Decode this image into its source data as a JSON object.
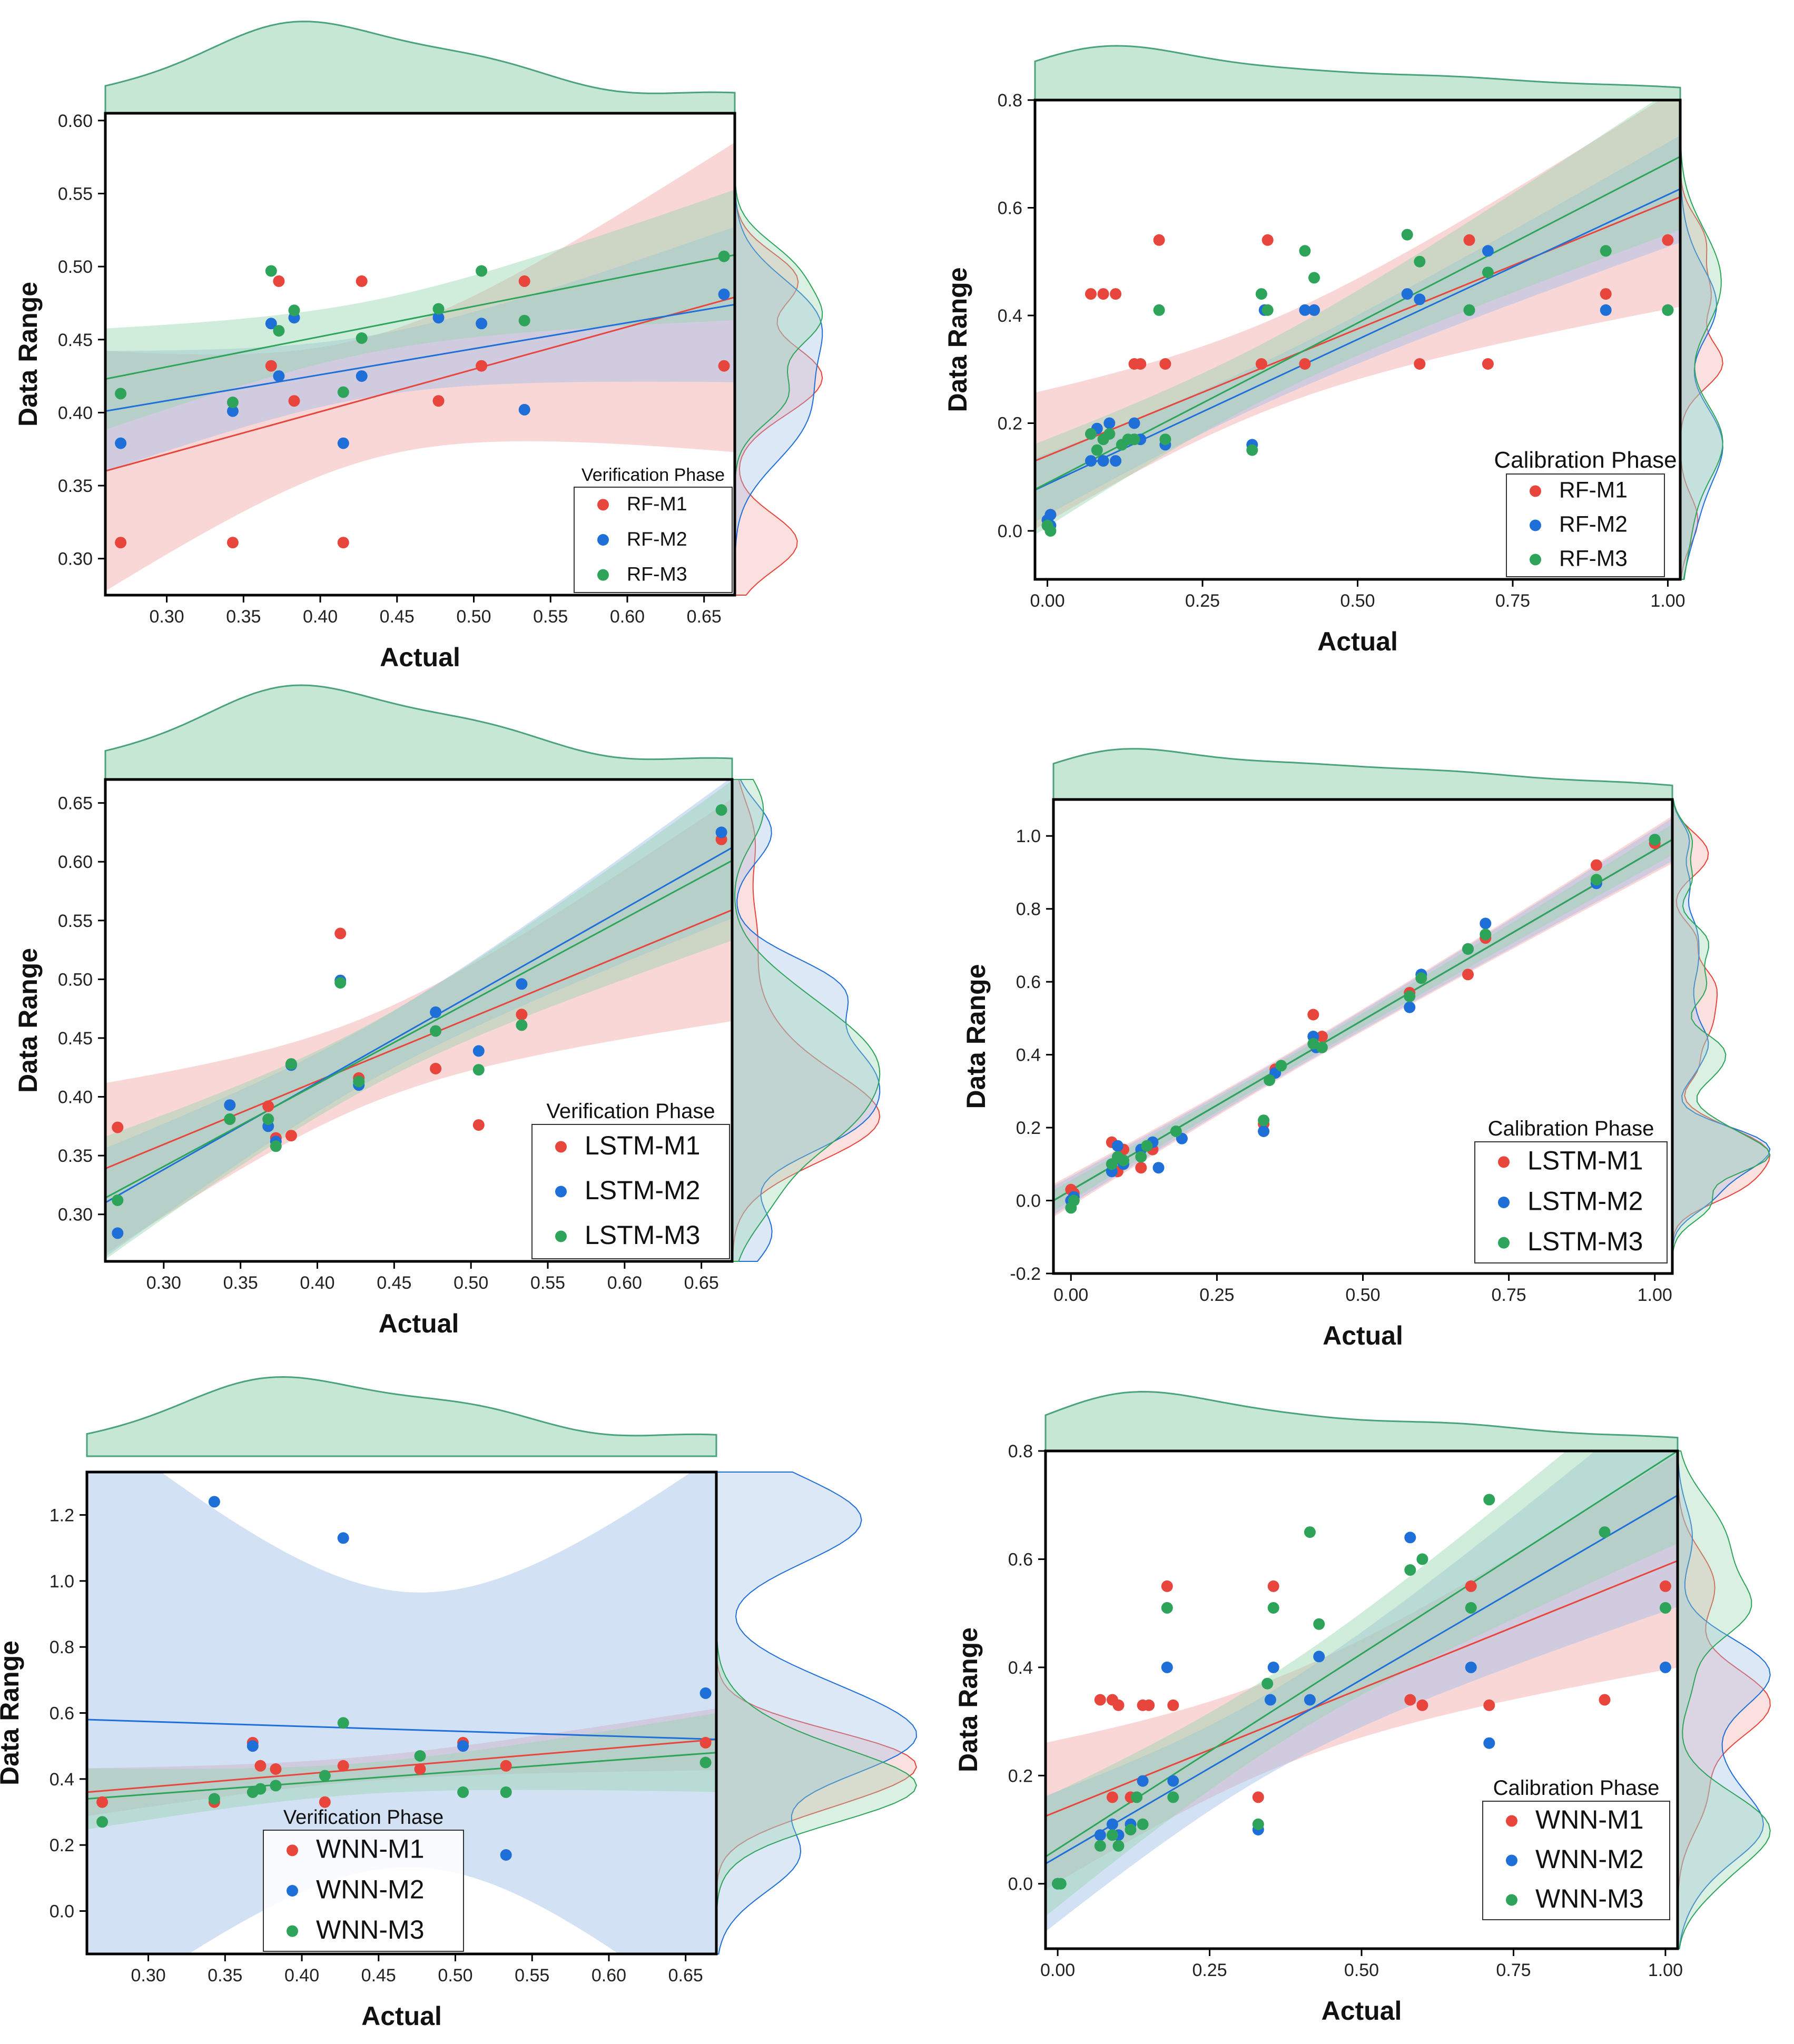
{
  "colors": {
    "M1": "#e8453c",
    "M2": "#1f6fd8",
    "M3": "#2ea45a",
    "band_M1": "#f4a6a6",
    "band_M2": "#9dbde8",
    "band_M3": "#96d4b0",
    "kde": "#4aa37c"
  },
  "chart_data": [
    {
      "type": "scatter",
      "xlabel": "Actual",
      "ylabel": "Data Range",
      "xlim": [
        0.26,
        0.67
      ],
      "ylim": [
        0.275,
        0.605
      ],
      "xticks": [
        "0.30",
        "0.35",
        "0.40",
        "0.45",
        "0.50",
        "0.55",
        "0.60",
        "0.65"
      ],
      "yticks": [
        "0.30",
        "0.35",
        "0.40",
        "0.45",
        "0.50",
        "0.55",
        "0.60"
      ],
      "legend_title": "Verification Phase",
      "legend_position": "bottom-right",
      "series": [
        {
          "name": "RF-M1",
          "x": [
            0.27,
            0.343,
            0.368,
            0.373,
            0.383,
            0.415,
            0.427,
            0.477,
            0.505,
            0.533,
            0.663
          ],
          "y": [
            0.311,
            0.311,
            0.432,
            0.49,
            0.408,
            0.311,
            0.49,
            0.408,
            0.432,
            0.49,
            0.432
          ],
          "fit": [
            0.36,
            0.479
          ]
        },
        {
          "name": "RF-M2",
          "x": [
            0.27,
            0.343,
            0.368,
            0.373,
            0.383,
            0.415,
            0.427,
            0.477,
            0.505,
            0.533,
            0.663
          ],
          "y": [
            0.379,
            0.401,
            0.461,
            0.425,
            0.465,
            0.379,
            0.425,
            0.465,
            0.461,
            0.402,
            0.481
          ],
          "fit": [
            0.401,
            0.474
          ]
        },
        {
          "name": "RF-M3",
          "x": [
            0.27,
            0.343,
            0.368,
            0.373,
            0.383,
            0.415,
            0.427,
            0.477,
            0.505,
            0.533,
            0.663
          ],
          "y": [
            0.413,
            0.407,
            0.497,
            0.456,
            0.47,
            0.414,
            0.451,
            0.471,
            0.497,
            0.463,
            0.507
          ],
          "fit": [
            0.423,
            0.508
          ]
        }
      ]
    },
    {
      "type": "scatter",
      "xlabel": "Actual",
      "ylabel": "Data Range",
      "xlim": [
        -0.02,
        1.02
      ],
      "ylim": [
        -0.09,
        0.8
      ],
      "xticks": [
        "0.00",
        "0.25",
        "0.50",
        "0.75",
        "1.00"
      ],
      "yticks": [
        "0.0",
        "0.2",
        "0.4",
        "0.6",
        "0.8"
      ],
      "legend_title": "Calibration Phase",
      "legend_position": "bottom-right",
      "series": [
        {
          "name": "RF-M1",
          "x": [
            0.0,
            0.0,
            0.005,
            0.07,
            0.09,
            0.11,
            0.14,
            0.15,
            0.18,
            0.19,
            0.345,
            0.355,
            0.415,
            0.43,
            0.6,
            0.68,
            0.71,
            0.9,
            1.0
          ],
          "y": [
            0.01,
            0.02,
            0.03,
            0.44,
            0.44,
            0.44,
            0.31,
            0.31,
            0.54,
            0.31,
            0.31,
            0.54,
            0.31,
            0.41,
            0.31,
            0.54,
            0.31,
            0.44,
            0.54
          ],
          "fit": [
            0.13,
            0.62
          ]
        },
        {
          "name": "RF-M2",
          "x": [
            0.0,
            0.005,
            0.005,
            0.07,
            0.08,
            0.09,
            0.1,
            0.11,
            0.12,
            0.14,
            0.15,
            0.19,
            0.33,
            0.35,
            0.415,
            0.43,
            0.58,
            0.6,
            0.68,
            0.71,
            0.9,
            1.0
          ],
          "y": [
            0.02,
            0.03,
            0.01,
            0.13,
            0.19,
            0.13,
            0.2,
            0.13,
            0.16,
            0.2,
            0.17,
            0.16,
            0.16,
            0.41,
            0.41,
            0.41,
            0.44,
            0.43,
            0.41,
            0.52,
            0.41,
            0.41
          ],
          "fit": [
            0.076,
            0.635
          ]
        },
        {
          "name": "RF-M3",
          "x": [
            0.0,
            0.005,
            0.07,
            0.08,
            0.09,
            0.1,
            0.12,
            0.13,
            0.14,
            0.18,
            0.19,
            0.33,
            0.345,
            0.355,
            0.415,
            0.43,
            0.58,
            0.6,
            0.68,
            0.71,
            0.9,
            1.0
          ],
          "y": [
            0.01,
            0.0,
            0.18,
            0.15,
            0.17,
            0.18,
            0.16,
            0.17,
            0.17,
            0.41,
            0.17,
            0.15,
            0.44,
            0.41,
            0.52,
            0.47,
            0.55,
            0.5,
            0.41,
            0.48,
            0.52,
            0.41
          ],
          "fit": [
            0.077,
            0.695
          ]
        }
      ]
    },
    {
      "type": "scatter",
      "xlabel": "Actual",
      "ylabel": "Data Range",
      "xlim": [
        0.262,
        0.67
      ],
      "ylim": [
        0.26,
        0.67
      ],
      "xticks": [
        "0.30",
        "0.35",
        "0.40",
        "0.45",
        "0.50",
        "0.55",
        "0.60",
        "0.65"
      ],
      "yticks": [
        "0.30",
        "0.35",
        "0.40",
        "0.45",
        "0.50",
        "0.55",
        "0.60",
        "0.65"
      ],
      "legend_title": "Verification Phase",
      "legend_position": "bottom-right",
      "series": [
        {
          "name": "LSTM-M1",
          "x": [
            0.27,
            0.343,
            0.368,
            0.373,
            0.383,
            0.415,
            0.427,
            0.477,
            0.505,
            0.533,
            0.663
          ],
          "y": [
            0.374,
            0.381,
            0.392,
            0.365,
            0.367,
            0.539,
            0.416,
            0.424,
            0.376,
            0.47,
            0.619
          ],
          "fit": [
            0.339,
            0.559
          ]
        },
        {
          "name": "LSTM-M2",
          "x": [
            0.27,
            0.343,
            0.368,
            0.373,
            0.383,
            0.415,
            0.427,
            0.477,
            0.505,
            0.533,
            0.663
          ],
          "y": [
            0.284,
            0.393,
            0.375,
            0.362,
            0.427,
            0.499,
            0.41,
            0.472,
            0.439,
            0.496,
            0.625
          ],
          "fit": [
            0.31,
            0.612
          ]
        },
        {
          "name": "LSTM-M3",
          "x": [
            0.27,
            0.343,
            0.368,
            0.373,
            0.383,
            0.415,
            0.427,
            0.477,
            0.505,
            0.533,
            0.663
          ],
          "y": [
            0.312,
            0.381,
            0.381,
            0.358,
            0.428,
            0.497,
            0.413,
            0.456,
            0.423,
            0.461,
            0.644
          ],
          "fit": [
            0.314,
            0.601
          ]
        }
      ]
    },
    {
      "type": "scatter",
      "xlabel": "Actual",
      "ylabel": "Data Range",
      "xlim": [
        -0.03,
        1.03
      ],
      "ylim": [
        -0.2,
        1.1
      ],
      "xticks": [
        "0.00",
        "0.25",
        "0.50",
        "0.75",
        "1.00"
      ],
      "yticks": [
        "-0.2",
        "0.0",
        "0.2",
        "0.4",
        "0.6",
        "0.8",
        "1.0"
      ],
      "legend_title": "Calibration Phase",
      "legend_position": "bottom-right",
      "series": [
        {
          "name": "LSTM-M1",
          "x": [
            0.0,
            0.005,
            0.07,
            0.08,
            0.09,
            0.12,
            0.14,
            0.33,
            0.35,
            0.415,
            0.43,
            0.58,
            0.68,
            0.71,
            0.9,
            1.0
          ],
          "y": [
            0.03,
            0.02,
            0.16,
            0.08,
            0.14,
            0.09,
            0.14,
            0.21,
            0.36,
            0.51,
            0.45,
            0.57,
            0.62,
            0.72,
            0.92,
            0.98
          ],
          "fit": [
            0.0,
            0.99
          ]
        },
        {
          "name": "LSTM-M2",
          "x": [
            0.0,
            0.005,
            0.07,
            0.08,
            0.09,
            0.12,
            0.14,
            0.15,
            0.19,
            0.33,
            0.35,
            0.415,
            0.42,
            0.58,
            0.6,
            0.68,
            0.71,
            0.9,
            1.0
          ],
          "y": [
            0.0,
            0.01,
            0.08,
            0.15,
            0.1,
            0.14,
            0.16,
            0.09,
            0.17,
            0.19,
            0.35,
            0.45,
            0.42,
            0.53,
            0.62,
            0.69,
            0.76,
            0.87,
            0.99
          ],
          "fit": [
            0.0,
            0.99
          ]
        },
        {
          "name": "LSTM-M3",
          "x": [
            0.0,
            0.005,
            0.07,
            0.08,
            0.09,
            0.12,
            0.13,
            0.18,
            0.33,
            0.34,
            0.36,
            0.415,
            0.43,
            0.58,
            0.6,
            0.68,
            0.71,
            0.9,
            1.0
          ],
          "y": [
            -0.02,
            0.0,
            0.1,
            0.12,
            0.11,
            0.12,
            0.15,
            0.19,
            0.22,
            0.33,
            0.37,
            0.43,
            0.42,
            0.56,
            0.61,
            0.69,
            0.73,
            0.88,
            0.99
          ],
          "fit": [
            0.0,
            0.99
          ]
        }
      ]
    },
    {
      "type": "scatter",
      "xlabel": "Actual",
      "ylabel": "Data Range",
      "xlim": [
        0.26,
        0.67
      ],
      "ylim": [
        -0.13,
        1.33
      ],
      "xticks": [
        "0.30",
        "0.35",
        "0.40",
        "0.45",
        "0.50",
        "0.55",
        "0.60",
        "0.65"
      ],
      "yticks": [
        "0.0",
        "0.2",
        "0.4",
        "0.6",
        "0.8",
        "1.0",
        "1.2"
      ],
      "legend_title": "Verification Phase",
      "legend_position": "bottom-center",
      "series": [
        {
          "name": "WNN-M1",
          "x": [
            0.27,
            0.343,
            0.368,
            0.373,
            0.383,
            0.415,
            0.427,
            0.477,
            0.505,
            0.533,
            0.663
          ],
          "y": [
            0.33,
            0.33,
            0.51,
            0.44,
            0.43,
            0.33,
            0.44,
            0.43,
            0.51,
            0.44,
            0.51
          ],
          "fit": [
            0.36,
            0.52
          ]
        },
        {
          "name": "WNN-M2",
          "x": [
            0.343,
            0.368,
            0.427,
            0.505,
            0.533,
            0.663
          ],
          "y": [
            1.24,
            0.5,
            1.13,
            0.5,
            0.17,
            0.66
          ],
          "fit": [
            0.58,
            0.52
          ]
        },
        {
          "name": "WNN-M3",
          "x": [
            0.27,
            0.343,
            0.368,
            0.373,
            0.383,
            0.415,
            0.427,
            0.477,
            0.505,
            0.533,
            0.663
          ],
          "y": [
            0.27,
            0.34,
            0.36,
            0.37,
            0.38,
            0.41,
            0.57,
            0.47,
            0.36,
            0.36,
            0.45
          ],
          "fit": [
            0.34,
            0.48
          ]
        }
      ]
    },
    {
      "type": "scatter",
      "xlabel": "Actual",
      "ylabel": "Data Range",
      "xlim": [
        -0.02,
        1.02
      ],
      "ylim": [
        -0.12,
        0.8
      ],
      "xticks": [
        "0.00",
        "0.25",
        "0.50",
        "0.75",
        "1.00"
      ],
      "yticks": [
        "0.0",
        "0.2",
        "0.4",
        "0.6",
        "0.8"
      ],
      "legend_title": "Calibration Phase",
      "legend_position": "bottom-right",
      "series": [
        {
          "name": "WNN-M1",
          "x": [
            0.07,
            0.09,
            0.09,
            0.1,
            0.12,
            0.14,
            0.15,
            0.18,
            0.19,
            0.33,
            0.355,
            0.58,
            0.6,
            0.68,
            0.71,
            0.9,
            1.0
          ],
          "y": [
            0.34,
            0.16,
            0.34,
            0.33,
            0.16,
            0.33,
            0.33,
            0.55,
            0.33,
            0.16,
            0.55,
            0.34,
            0.33,
            0.55,
            0.33,
            0.34,
            0.55
          ],
          "fit": [
            0.125,
            0.597
          ]
        },
        {
          "name": "WNN-M2",
          "x": [
            0.0,
            0.07,
            0.09,
            0.1,
            0.12,
            0.14,
            0.18,
            0.19,
            0.33,
            0.35,
            0.355,
            0.415,
            0.43,
            0.58,
            0.68,
            0.71,
            1.0
          ],
          "y": [
            0.0,
            0.09,
            0.11,
            0.09,
            0.11,
            0.19,
            0.4,
            0.19,
            0.1,
            0.34,
            0.4,
            0.34,
            0.42,
            0.64,
            0.4,
            0.26,
            0.4
          ],
          "fit": [
            0.037,
            0.718
          ]
        },
        {
          "name": "WNN-M3",
          "x": [
            0.0,
            0.005,
            0.07,
            0.09,
            0.1,
            0.12,
            0.13,
            0.14,
            0.18,
            0.19,
            0.33,
            0.345,
            0.355,
            0.415,
            0.43,
            0.58,
            0.6,
            0.68,
            0.71,
            0.9,
            1.0
          ],
          "y": [
            0.0,
            0.0,
            0.07,
            0.09,
            0.07,
            0.1,
            0.16,
            0.11,
            0.51,
            0.16,
            0.11,
            0.37,
            0.51,
            0.65,
            0.48,
            0.58,
            0.6,
            0.51,
            0.71,
            0.65,
            0.51
          ],
          "fit": [
            0.05,
            0.8
          ]
        }
      ]
    }
  ]
}
